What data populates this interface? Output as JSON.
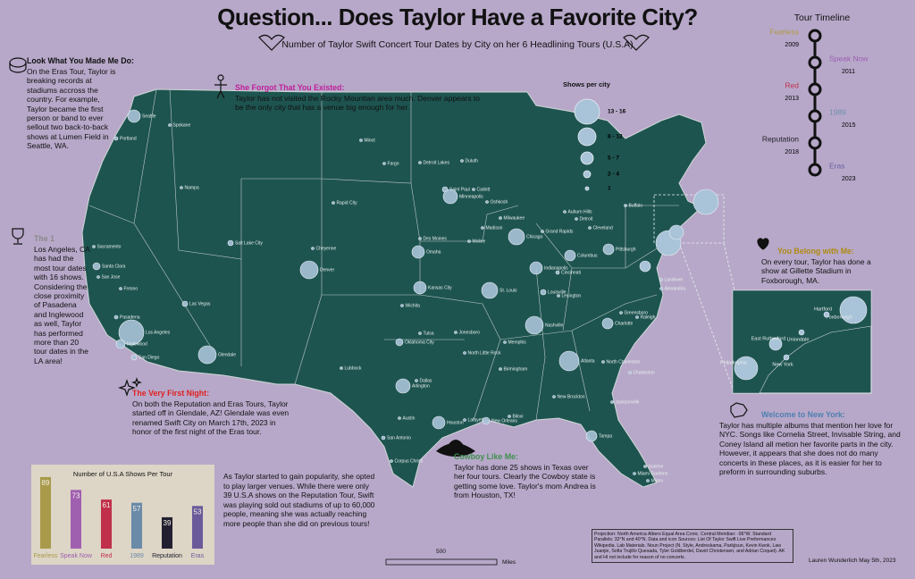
{
  "header": {
    "title": "Question... Does Taylor Have a Favorite City?",
    "subtitle": "Number of Taylor Swift Concert Tour Dates by City on her 6 Headlining Tours (U.S.A)"
  },
  "timeline": {
    "title": "Tour Timeline",
    "tours": [
      {
        "name": "Fearless",
        "year": "2009",
        "color": "#b19a45"
      },
      {
        "name": "Speak Now",
        "year": "2011",
        "color": "#9a5fb0"
      },
      {
        "name": "Red",
        "year": "2013",
        "color": "#c03048"
      },
      {
        "name": "1989",
        "year": "2015",
        "color": "#6f8fb0"
      },
      {
        "name": "Reputation",
        "year": "2018",
        "color": "#222028"
      },
      {
        "name": "Eras",
        "year": "2023",
        "color": "#6a5fa0"
      }
    ]
  },
  "legend": {
    "title": "Shows per city",
    "classes": [
      "13 - 16",
      "8 - 12",
      "5 - 7",
      "2 - 4",
      "1"
    ]
  },
  "annotations": [
    {
      "title": "Look What You Made Me Do:",
      "color": "#111111",
      "text": "On the Eras Tour, Taylor is breaking records at stadiums accross the country. For example, Taylor became the first person or band to ever sellout two back-to-back shows at Lumen Field in Seattle, WA."
    },
    {
      "title": "The 1",
      "color": "#8a8a8a",
      "text": "Los Angeles, CA has had the most tour dates with 16 shows. Considering the close proximity of Pasadena and Inglewood as well, Taylor has performed more than 20 tour dates in the LA area!"
    },
    {
      "title": "She Forgot That You Existed:",
      "color": "#c0209a",
      "text": "Taylor has not visited the Rocky Mountian area much. Denver appears to be the only city that has a venue big enough for her."
    },
    {
      "title": "The Very First Night:",
      "color": "#e02020",
      "text": "On both the Reputation and Eras Tours, Taylor started off in Glendale, AZ! Glendale was even renamed Swift City on March 17th, 2023 in honor of the first night of the Eras tour."
    },
    {
      "title": "Cowboy Like Me:",
      "color": "#3f8f4f",
      "text": "Taylor has done 25 shows in Texas over her four tours. Clearly the Cowboy state is getting some love. Taylor's mom Andrea is from Houston, TX!"
    },
    {
      "title": "You Belong with Me:",
      "color": "#b08a10",
      "text": "On every tour, Taylor has done a show at Gillette Stadium in Foxborough, MA."
    },
    {
      "title": "Welcome to New York:",
      "color": "#4f7fb0",
      "text": "Taylor has multiple albums that mention her love for NYC. Songs like Cornelia Street, Invisable String, and Coney Island all metion her favorite parts in the city. However, it appears that she does not do many concerts in these places, as it is easier for her to preform in surrounding suburbs."
    }
  ],
  "paragraph": "As Taylor started to gain popularity, she opted to play larger venues. While there were only 39 U.S.A shows on the Reputation Tour, Swift was playing sold out stadiums of up to 60,000 people, meaning she was actually reaching more people than she did on previous tours!",
  "cities": [
    "Seattle",
    "Spokane",
    "Portland",
    "Nampa",
    "Sacramento",
    "Santa Clara",
    "San Jose",
    "Fresno",
    "Pasadena",
    "Los Angeles",
    "Inglewood",
    "San Diego",
    "Las Vegas",
    "Salt Lake City",
    "Glendale",
    "Denver",
    "Cheyenne",
    "Rapid City",
    "Minot",
    "Fargo",
    "Detroit Lakes",
    "Duluth",
    "Saint Paul",
    "Minneapolis",
    "Des Moines",
    "Omaha",
    "Kansas City",
    "Wichita",
    "Oklahoma City",
    "Tulsa",
    "Lubbock",
    "Arlington",
    "Dallas",
    "Austin",
    "San Antonio",
    "Houston",
    "Corpus Christi",
    "Lafayette",
    "New Orleans",
    "Biloxi",
    "Memphis",
    "North Little Rock",
    "Jonesboro",
    "Birmingham",
    "St. Louis",
    "Chicago",
    "Milwaukee",
    "Madison",
    "Oshkosh",
    "Cadott",
    "Moline",
    "Indianapolis",
    "Louisville",
    "Nashville",
    "Lexington",
    "Cincinnati",
    "Columbus",
    "Cleveland",
    "Detroit",
    "Auburn Hills",
    "Grand Rapids",
    "Buffalo",
    "Pittsburgh",
    "Charlotte",
    "Greensboro",
    "Raleigh",
    "Atlanta",
    "North Charleston",
    "Charleston",
    "Jacksonville",
    "Tampa",
    "Sunrise",
    "Miami Gardens",
    "Miami",
    "New Brockton",
    "Landover",
    "Alexandria"
  ],
  "inset_cities": [
    "Foxborough",
    "Hartford",
    "Uniondale",
    "East Rutherford",
    "New York",
    "Philadelphia"
  ],
  "chart_data": {
    "type": "bar",
    "title": "Number of U.S.A Shows Per Tour",
    "categories": [
      "Fearless",
      "Speak Now",
      "Red",
      "1989",
      "Reputation",
      "Eras"
    ],
    "values": [
      89,
      73,
      61,
      57,
      39,
      53
    ],
    "colors": [
      "#a89a4a",
      "#a060b0",
      "#c0304a",
      "#6a8aa8",
      "#222030",
      "#6a5a9a"
    ]
  },
  "scale": {
    "distance": "500",
    "unit": "Miles"
  },
  "credits": "Projection: North America Albers Equal Area Conic. Central Meridian: -96°W. Standard Parallels: 32°N and 40°N. Data and icon Sources: List Of Taylor Swift Live Preformances Wikipedia. Lab Materials. Noun Project (N. Style, Andreskama, Parkjisun, Kevin Kwok, Law Juanjie, Sofia Trujillo Quesada, Tyler Goldberdel, David Christensen, and Adrian Coquet). AK and HI not include for reason of no concerts.",
  "author": "Lauren Wunderlich May 5th, 2023"
}
